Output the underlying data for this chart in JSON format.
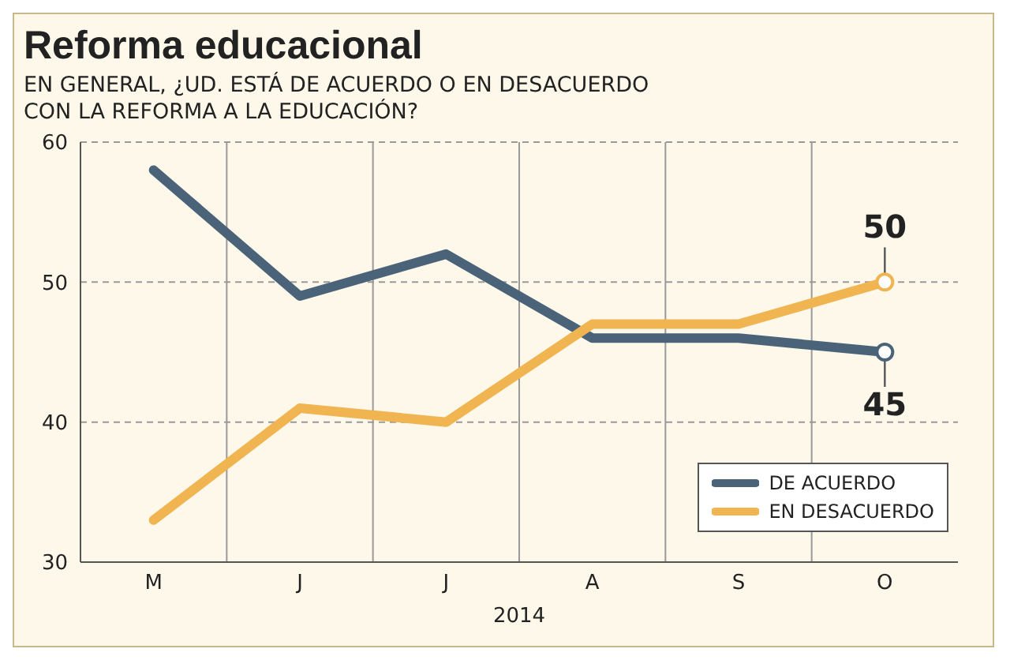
{
  "chart_data": {
    "type": "line",
    "title": "Reforma educacional",
    "subtitle": "EN GENERAL, ¿UD. ESTÁ DE ACUERDO O EN DESACUERDO CON LA REFORMA A LA EDUCACIÓN?",
    "xlabel": "2014",
    "categories": [
      "M",
      "J",
      "J",
      "A",
      "S",
      "O"
    ],
    "series": [
      {
        "name": "DE ACUERDO",
        "color": "#4a6378",
        "values": [
          58,
          49,
          52,
          46,
          46,
          45
        ]
      },
      {
        "name": "EN DESACUERDO",
        "color": "#f0b450",
        "values": [
          33,
          41,
          40,
          47,
          47,
          50
        ]
      }
    ],
    "ylim": [
      30,
      60
    ],
    "yticks": [
      30,
      40,
      50,
      60
    ],
    "grid": true,
    "legend": "bottom right",
    "line_style": "solid",
    "annotations": [
      {
        "text": "50",
        "x": "O",
        "y": 50
      },
      {
        "text": "45",
        "x": "O",
        "y": 45
      }
    ]
  }
}
